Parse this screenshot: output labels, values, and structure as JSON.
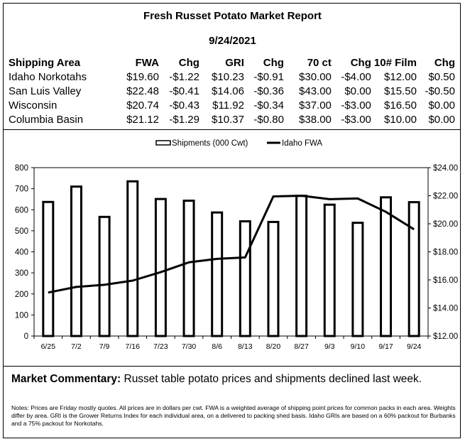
{
  "report": {
    "title": "Fresh Russet Potato Market Report",
    "date": "9/24/2021"
  },
  "price_table": {
    "headers": [
      "Shipping Area",
      "FWA",
      "Chg",
      "GRI",
      "Chg",
      "70 ct",
      "Chg",
      "10# Film",
      "Chg"
    ],
    "rows": [
      [
        "Idaho Norkotahs",
        "$19.60",
        "-$1.22",
        "$10.23",
        "-$0.91",
        "$30.00",
        "-$4.00",
        "$12.00",
        "$0.50"
      ],
      [
        "San Luis Valley",
        "$22.48",
        "-$0.41",
        "$14.06",
        "-$0.36",
        "$43.00",
        "$0.00",
        "$15.50",
        "-$0.50"
      ],
      [
        "Wisconsin",
        "$20.74",
        "-$0.43",
        "$11.92",
        "-$0.34",
        "$37.00",
        "-$3.00",
        "$16.50",
        "$0.00"
      ],
      [
        "Columbia Basin",
        "$21.12",
        "-$1.29",
        "$10.37",
        "-$0.80",
        "$38.00",
        "-$3.00",
        "$10.00",
        "$0.00"
      ]
    ]
  },
  "chart_data": {
    "type": "bar",
    "categories": [
      "6/25",
      "7/2",
      "7/9",
      "7/16",
      "7/23",
      "7/30",
      "8/6",
      "8/13",
      "8/20",
      "8/27",
      "9/3",
      "9/10",
      "9/17",
      "9/24"
    ],
    "series": [
      {
        "name": "Shipments (000 Cwt)",
        "type": "bar",
        "axis": "left",
        "values": [
          637,
          710,
          566,
          735,
          651,
          643,
          587,
          545,
          542,
          666,
          624,
          538,
          659,
          636
        ]
      },
      {
        "name": "Idaho FWA",
        "type": "line",
        "axis": "right",
        "values": [
          15.1,
          15.5,
          15.65,
          15.95,
          16.55,
          17.25,
          17.5,
          17.6,
          21.95,
          22.0,
          21.75,
          21.8,
          20.85,
          19.6
        ]
      }
    ],
    "y_left": {
      "range": [
        0,
        800
      ],
      "ticks": [
        "0",
        "100",
        "200",
        "300",
        "400",
        "500",
        "600",
        "700",
        "800"
      ]
    },
    "y_right": {
      "range": [
        12,
        24
      ],
      "ticks": [
        "$12.00",
        "$14.00",
        "$16.00",
        "$18.00",
        "$20.00",
        "$22.00",
        "$24.00"
      ]
    },
    "legend_position": "top-center",
    "grid": false
  },
  "commentary": {
    "label": "Market Commentary:",
    "text": " Russet table potato prices and shipments declined last week."
  },
  "notes": "Notes: Prices are Friday mostly quotes. All prices are in dollars per cwt. FWA is a weighted average of shipping point prices for  common packs in each area. Weights differ by area. GRI is the Grower Returns Index for each individual area, on a delivered to packing shed basis. Idaho GRIs are based on a 60% packout for Burbanks and a 75% packout for Norkotahs."
}
